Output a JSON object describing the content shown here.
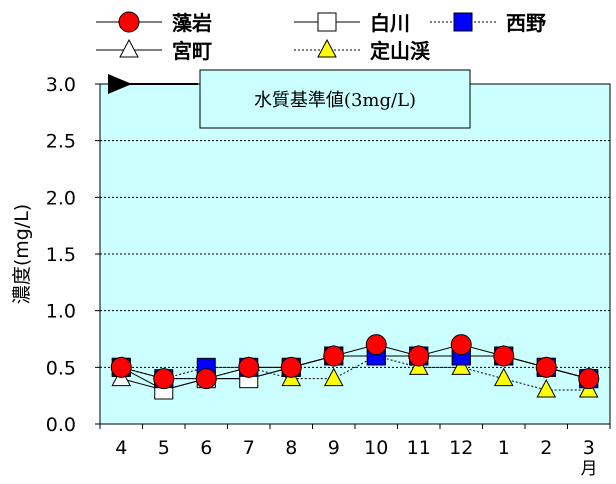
{
  "chart_data": {
    "type": "line",
    "ylabel": "濃度(mg/L)",
    "ylim": [
      0.0,
      3.0
    ],
    "y_ticks": [
      "0.0",
      "0.5",
      "1.0",
      "1.5",
      "2.0",
      "2.5",
      "3.0"
    ],
    "categories": [
      "4",
      "5",
      "6",
      "7",
      "8",
      "9",
      "10",
      "11",
      "12",
      "1",
      "2",
      "3"
    ],
    "x_unit": "月",
    "grid": "horizontal-dashed",
    "legend_placement": "top",
    "callout": "水質基準値(3mg/L)",
    "reference_value": 3.0,
    "series": [
      {
        "name": "藻岩",
        "marker": "circle",
        "fill": "#ff0000",
        "line": "solid",
        "values": [
          0.5,
          0.4,
          0.4,
          0.5,
          0.5,
          0.6,
          0.7,
          0.6,
          0.7,
          0.6,
          0.5,
          0.4
        ]
      },
      {
        "name": "白川",
        "marker": "square",
        "fill": "#ffffff",
        "line": "solid",
        "values": [
          0.5,
          0.3,
          0.4,
          0.4,
          0.5,
          0.6,
          0.6,
          0.6,
          0.6,
          0.6,
          0.5,
          0.4
        ]
      },
      {
        "name": "西野",
        "marker": "square",
        "fill": "#0000ff",
        "line": "dotted",
        "values": [
          0.5,
          0.4,
          0.5,
          0.5,
          0.5,
          0.6,
          0.6,
          0.6,
          0.6,
          0.6,
          0.5,
          0.4
        ]
      },
      {
        "name": "宮町",
        "marker": "triangle",
        "fill": "#ffffff",
        "line": "solid",
        "values": [
          0.4,
          0.3,
          0.4,
          0.4,
          0.5,
          0.6,
          0.6,
          0.6,
          0.6,
          0.6,
          0.5,
          0.4
        ]
      },
      {
        "name": "定山渓",
        "marker": "triangle",
        "fill": "#ffff00",
        "line": "dotted",
        "values": [
          0.5,
          0.4,
          0.4,
          0.5,
          0.4,
          0.4,
          0.6,
          0.5,
          0.5,
          0.4,
          0.3,
          0.3
        ]
      }
    ]
  },
  "colors": {
    "plot_background": "#ccffff",
    "marker_outline": "#000000",
    "grid": "#000000",
    "callout_background": "#ccffff"
  }
}
